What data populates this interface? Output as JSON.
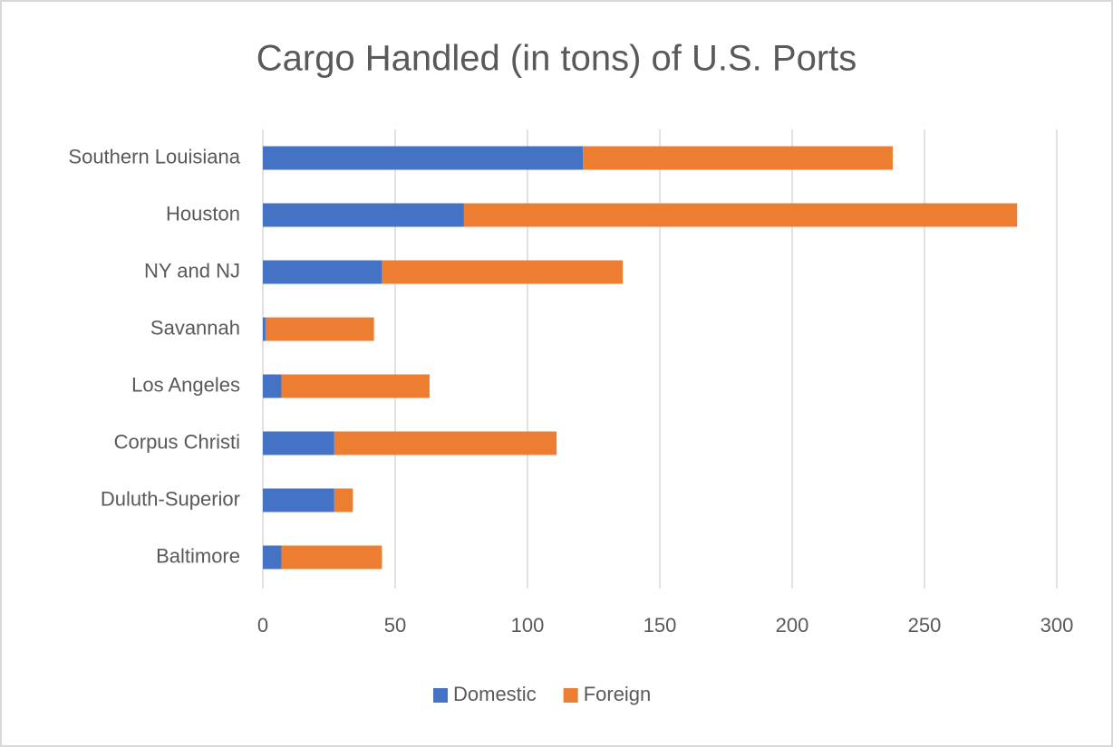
{
  "chart_data": {
    "type": "stacked_bar_horizontal",
    "title": "Cargo Handled (in tons) of U.S. Ports",
    "categories": [
      "Southern Louisiana",
      "Houston",
      "NY and NJ",
      "Savannah",
      "Los Angeles",
      "Corpus Christi",
      "Duluth-Superior",
      "Baltimore"
    ],
    "series": [
      {
        "name": "Domestic",
        "color": "#4472c4",
        "values": [
          121,
          76,
          45,
          1,
          7,
          27,
          27,
          7
        ]
      },
      {
        "name": "Foreign",
        "color": "#ed7d31",
        "values": [
          117,
          209,
          91,
          41,
          56,
          84,
          7,
          38
        ]
      }
    ],
    "xlim": [
      0,
      300
    ],
    "xticks": [
      0,
      50,
      100,
      150,
      200,
      250,
      300
    ],
    "grid": true,
    "legend": "bottom"
  }
}
